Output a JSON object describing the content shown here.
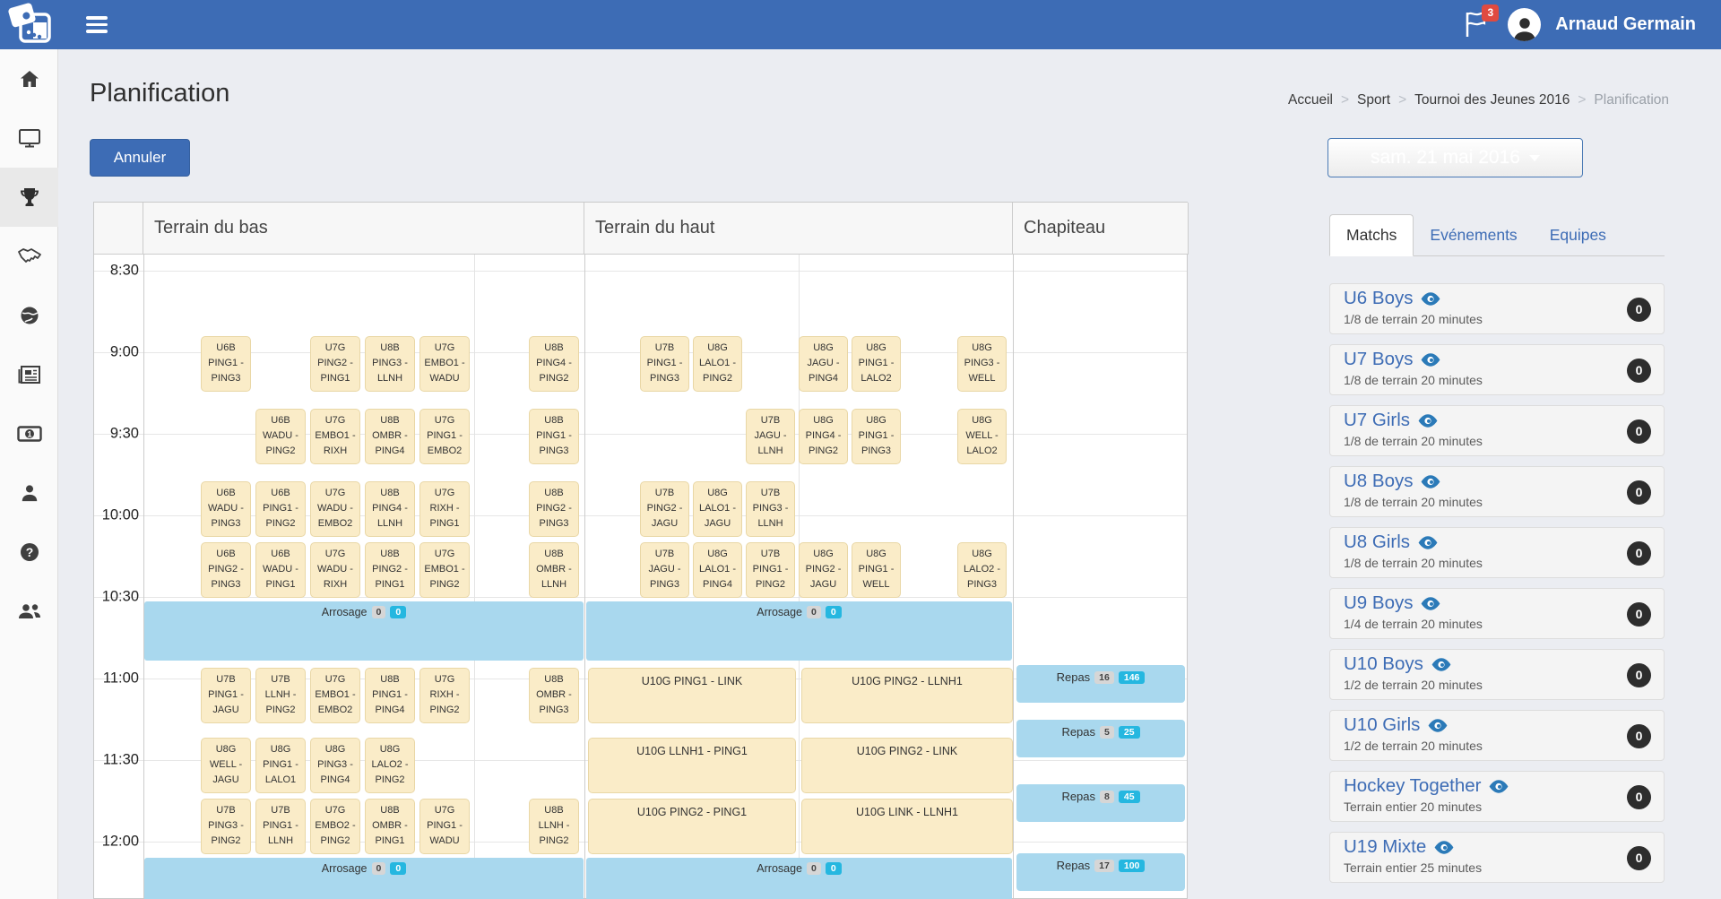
{
  "navbar": {
    "user_name": "Arnaud Germain",
    "notification_count": "3"
  },
  "page": {
    "title": "Planification",
    "cancel_button": "Annuler",
    "date_selector": "sam. 21 mai 2016"
  },
  "breadcrumb": [
    "Accueil",
    "Sport",
    "Tournoi des Jeunes 2016",
    "Planification"
  ],
  "tabs": [
    {
      "label": "Matchs",
      "active": true
    },
    {
      "label": "Evénements",
      "active": false
    },
    {
      "label": "Equipes",
      "active": false
    }
  ],
  "categories": [
    {
      "title": "U6 Boys",
      "subtitle": "1/8 de terrain 20 minutes",
      "count": "0"
    },
    {
      "title": "U7 Boys",
      "subtitle": "1/8 de terrain 20 minutes",
      "count": "0"
    },
    {
      "title": "U7 Girls",
      "subtitle": "1/8 de terrain 20 minutes",
      "count": "0"
    },
    {
      "title": "U8 Boys",
      "subtitle": "1/8 de terrain 20 minutes",
      "count": "0"
    },
    {
      "title": "U8 Girls",
      "subtitle": "1/8 de terrain 20 minutes",
      "count": "0"
    },
    {
      "title": "U9 Boys",
      "subtitle": "1/4 de terrain 20 minutes",
      "count": "0"
    },
    {
      "title": "U10 Boys",
      "subtitle": "1/2 de terrain 20 minutes",
      "count": "0"
    },
    {
      "title": "U10 Girls",
      "subtitle": "1/2 de terrain 20 minutes",
      "count": "0"
    },
    {
      "title": "Hockey Together",
      "subtitle": "Terrain entier 20 minutes",
      "count": "0"
    },
    {
      "title": "U19 Mixte",
      "subtitle": "Terrain entier 25 minutes",
      "count": "0"
    }
  ],
  "calendar": {
    "columns": [
      "Terrain du bas",
      "Terrain du haut",
      "Chapiteau"
    ],
    "times": [
      "8:30",
      "9:00",
      "9:30",
      "10:00",
      "10:30",
      "11:00",
      "11:30",
      "12:00"
    ],
    "match_rows": [
      {
        "time": "9:00",
        "bas": [
          {
            "slot": 1,
            "cat": "U6B",
            "a": "PING1",
            "b": "PING3"
          },
          {
            "slot": 3,
            "cat": "U7G",
            "a": "PING2",
            "b": "PING1"
          },
          {
            "slot": 4,
            "cat": "U8B",
            "a": "PING3",
            "b": "LLNH"
          },
          {
            "slot": 5,
            "cat": "U7G",
            "a": "EMBO1",
            "b": "WADU"
          },
          {
            "slot": 7,
            "cat": "U8B",
            "a": "PING4",
            "b": "PING2"
          }
        ],
        "haut": [
          {
            "slot": 1,
            "cat": "U7B",
            "a": "PING1",
            "b": "PING3"
          },
          {
            "slot": 2,
            "cat": "U8G",
            "a": "LALO1",
            "b": "PING2"
          },
          {
            "slot": 4,
            "cat": "U8G",
            "a": "JAGU",
            "b": "PING4"
          },
          {
            "slot": 5,
            "cat": "U8G",
            "a": "PING1",
            "b": "LALO2"
          },
          {
            "slot": 7,
            "cat": "U8G",
            "a": "PING3",
            "b": "WELL"
          }
        ],
        "haut_wide": []
      },
      {
        "time": "9:30",
        "bas": [
          {
            "slot": 2,
            "cat": "U6B",
            "a": "WADU",
            "b": "PING2"
          },
          {
            "slot": 3,
            "cat": "U7G",
            "a": "EMBO1",
            "b": "RIXH"
          },
          {
            "slot": 4,
            "cat": "U8B",
            "a": "OMBR",
            "b": "PING4"
          },
          {
            "slot": 5,
            "cat": "U7G",
            "a": "PING1",
            "b": "EMBO2"
          },
          {
            "slot": 7,
            "cat": "U8B",
            "a": "PING1",
            "b": "PING3"
          }
        ],
        "haut": [
          {
            "slot": 3,
            "cat": "U7B",
            "a": "JAGU",
            "b": "LLNH"
          },
          {
            "slot": 4,
            "cat": "U8G",
            "a": "PING4",
            "b": "PING2"
          },
          {
            "slot": 5,
            "cat": "U8G",
            "a": "PING1",
            "b": "PING3"
          },
          {
            "slot": 7,
            "cat": "U8G",
            "a": "WELL",
            "b": "LALO2"
          }
        ],
        "haut_wide": []
      },
      {
        "time": "10:00",
        "bas": [
          {
            "slot": 1,
            "cat": "U6B",
            "a": "WADU",
            "b": "PING3"
          },
          {
            "slot": 2,
            "cat": "U6B",
            "a": "PING1",
            "b": "PING2"
          },
          {
            "slot": 3,
            "cat": "U7G",
            "a": "WADU",
            "b": "EMBO2"
          },
          {
            "slot": 4,
            "cat": "U8B",
            "a": "PING4",
            "b": "LLNH"
          },
          {
            "slot": 5,
            "cat": "U7G",
            "a": "RIXH",
            "b": "PING1"
          },
          {
            "slot": 7,
            "cat": "U8B",
            "a": "PING2",
            "b": "PING3"
          }
        ],
        "haut": [
          {
            "slot": 1,
            "cat": "U7B",
            "a": "PING2",
            "b": "JAGU"
          },
          {
            "slot": 2,
            "cat": "U8G",
            "a": "LALO1",
            "b": "JAGU"
          },
          {
            "slot": 3,
            "cat": "U7B",
            "a": "PING3",
            "b": "LLNH"
          }
        ],
        "haut_wide": []
      },
      {
        "time": "10:30",
        "bas": [
          {
            "slot": 1,
            "cat": "U6B",
            "a": "PING2",
            "b": "PING3"
          },
          {
            "slot": 2,
            "cat": "U6B",
            "a": "WADU",
            "b": "PING1"
          },
          {
            "slot": 3,
            "cat": "U7G",
            "a": "WADU",
            "b": "RIXH"
          },
          {
            "slot": 4,
            "cat": "U8B",
            "a": "PING2",
            "b": "PING1"
          },
          {
            "slot": 5,
            "cat": "U7G",
            "a": "EMBO1",
            "b": "PING2"
          },
          {
            "slot": 7,
            "cat": "U8B",
            "a": "OMBR",
            "b": "LLNH"
          }
        ],
        "haut": [
          {
            "slot": 1,
            "cat": "U7B",
            "a": "JAGU",
            "b": "PING3"
          },
          {
            "slot": 2,
            "cat": "U8G",
            "a": "LALO1",
            "b": "PING4"
          },
          {
            "slot": 3,
            "cat": "U7B",
            "a": "PING1",
            "b": "PING2"
          },
          {
            "slot": 4,
            "cat": "U8G",
            "a": "PING2",
            "b": "JAGU"
          },
          {
            "slot": 5,
            "cat": "U8G",
            "a": "PING1",
            "b": "WELL"
          },
          {
            "slot": 7,
            "cat": "U8G",
            "a": "LALO2",
            "b": "PING3"
          }
        ],
        "haut_wide": []
      },
      {
        "time": "11:00",
        "bas": [
          {
            "slot": 1,
            "cat": "U7B",
            "a": "PING1",
            "b": "JAGU"
          },
          {
            "slot": 2,
            "cat": "U7B",
            "a": "LLNH",
            "b": "PING2"
          },
          {
            "slot": 3,
            "cat": "U7G",
            "a": "EMBO1",
            "b": "EMBO2"
          },
          {
            "slot": 4,
            "cat": "U8B",
            "a": "PING1",
            "b": "PING4"
          },
          {
            "slot": 5,
            "cat": "U7G",
            "a": "RIXH",
            "b": "PING2"
          },
          {
            "slot": 7,
            "cat": "U8B",
            "a": "OMBR",
            "b": "PING3"
          }
        ],
        "haut": [],
        "haut_wide": [
          "U10G PING1 - LINK",
          "U10G PING2 - LLNH1"
        ]
      },
      {
        "time": "11:30",
        "bas": [
          {
            "slot": 1,
            "cat": "U8G",
            "a": "WELL",
            "b": "JAGU"
          },
          {
            "slot": 2,
            "cat": "U8G",
            "a": "PING1",
            "b": "LALO1"
          },
          {
            "slot": 3,
            "cat": "U8G",
            "a": "PING3",
            "b": "PING4"
          },
          {
            "slot": 4,
            "cat": "U8G",
            "a": "LALO2",
            "b": "PING2"
          }
        ],
        "haut": [],
        "haut_wide": [
          "U10G LLNH1 - PING1",
          "U10G PING2 - LINK"
        ]
      },
      {
        "time": "12:00",
        "bas": [
          {
            "slot": 1,
            "cat": "U7B",
            "a": "PING3",
            "b": "PING2"
          },
          {
            "slot": 2,
            "cat": "U7B",
            "a": "PING1",
            "b": "LLNH"
          },
          {
            "slot": 3,
            "cat": "U7G",
            "a": "EMBO2",
            "b": "PING2"
          },
          {
            "slot": 4,
            "cat": "U8B",
            "a": "OMBR",
            "b": "PING1"
          },
          {
            "slot": 5,
            "cat": "U7G",
            "a": "PING1",
            "b": "WADU"
          },
          {
            "slot": 7,
            "cat": "U8B",
            "a": "LLNH",
            "b": "PING2"
          }
        ],
        "haut": [],
        "haut_wide": [
          "U10G PING2 - PING1",
          "U10G LINK - LLNH1"
        ]
      }
    ],
    "arrosage_bands": [
      {
        "label": "Arrosage",
        "badge_gray": "0",
        "badge_cyan": "0"
      },
      {
        "label": "Arrosage",
        "badge_gray": "0",
        "badge_cyan": "0"
      }
    ],
    "repas_blocks": [
      {
        "label": "Repas",
        "badge_gray": "16",
        "badge_cyan": "146"
      },
      {
        "label": "Repas",
        "badge_gray": "5",
        "badge_cyan": "25"
      },
      {
        "label": "Repas",
        "badge_gray": "8",
        "badge_cyan": "45"
      },
      {
        "label": "Repas",
        "badge_gray": "17",
        "badge_cyan": "100"
      }
    ]
  }
}
